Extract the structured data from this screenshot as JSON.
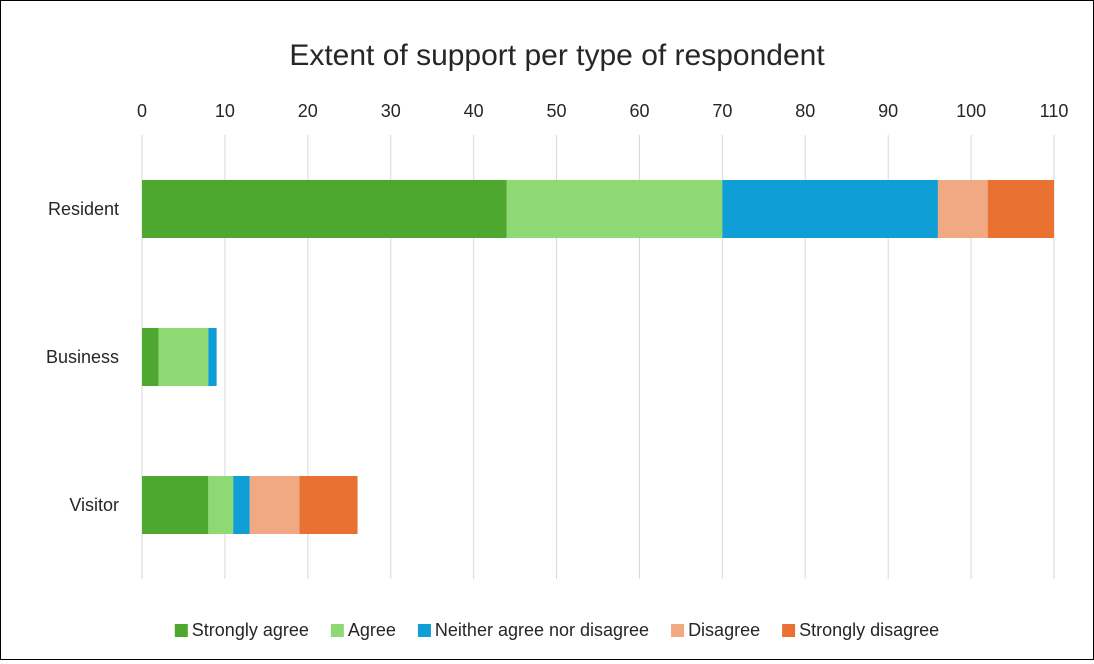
{
  "chart_data": {
    "type": "bar",
    "orientation": "horizontal",
    "stacked": true,
    "title": "Extent of support per type of respondent",
    "xlabel": "",
    "ylabel": "",
    "xlim": [
      0,
      110
    ],
    "x_ticks": [
      0,
      10,
      20,
      30,
      40,
      50,
      60,
      70,
      80,
      90,
      100,
      110
    ],
    "x_axis_position": "top",
    "gridlines": "vertical",
    "legend_position": "bottom",
    "categories": [
      "Resident",
      "Business",
      "Visitor"
    ],
    "series": [
      {
        "name": "Strongly agree",
        "color": "#4ea72e",
        "values": [
          44,
          2,
          8
        ]
      },
      {
        "name": "Agree",
        "color": "#8ed973",
        "values": [
          26,
          6,
          3
        ]
      },
      {
        "name": "Neither agree nor disagree",
        "color": "#0f9ed5",
        "values": [
          26,
          1,
          2
        ]
      },
      {
        "name": "Disagree",
        "color": "#f1a983",
        "values": [
          6,
          0,
          6
        ]
      },
      {
        "name": "Strongly disagree",
        "color": "#e97132",
        "values": [
          8,
          0,
          7
        ]
      }
    ]
  }
}
